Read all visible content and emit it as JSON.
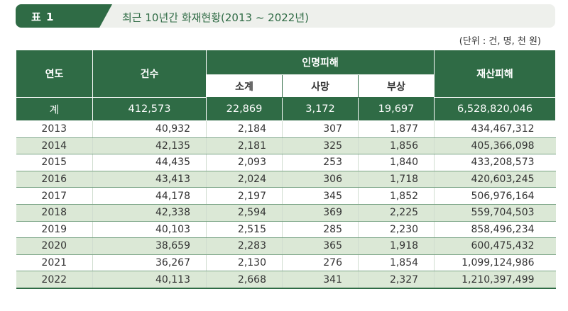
{
  "title": {
    "tag": "표 1",
    "text": "최근 10년간 화재현황(2013 ~ 2022년)"
  },
  "unit": "(단위 : 건, 명, 천 원)",
  "headers": {
    "year": "연도",
    "count": "건수",
    "casualties": "인명피해",
    "subtotal": "소계",
    "deaths": "사망",
    "injuries": "부상",
    "property": "재산피해"
  },
  "total": {
    "label": "계",
    "count": "412,573",
    "subtotal": "22,869",
    "deaths": "3,172",
    "injuries": "19,697",
    "property": "6,528,820,046"
  },
  "rows": [
    {
      "year": "2013",
      "count": "40,932",
      "subtotal": "2,184",
      "deaths": "307",
      "injuries": "1,877",
      "property": "434,467,312"
    },
    {
      "year": "2014",
      "count": "42,135",
      "subtotal": "2,181",
      "deaths": "325",
      "injuries": "1,856",
      "property": "405,366,098"
    },
    {
      "year": "2015",
      "count": "44,435",
      "subtotal": "2,093",
      "deaths": "253",
      "injuries": "1,840",
      "property": "433,208,573"
    },
    {
      "year": "2016",
      "count": "43,413",
      "subtotal": "2,024",
      "deaths": "306",
      "injuries": "1,718",
      "property": "420,603,245"
    },
    {
      "year": "2017",
      "count": "44,178",
      "subtotal": "2,197",
      "deaths": "345",
      "injuries": "1,852",
      "property": "506,976,164"
    },
    {
      "year": "2018",
      "count": "42,338",
      "subtotal": "2,594",
      "deaths": "369",
      "injuries": "2,225",
      "property": "559,704,503"
    },
    {
      "year": "2019",
      "count": "40,103",
      "subtotal": "2,515",
      "deaths": "285",
      "injuries": "2,230",
      "property": "858,496,234"
    },
    {
      "year": "2020",
      "count": "38,659",
      "subtotal": "2,283",
      "deaths": "365",
      "injuries": "1,918",
      "property": "600,475,432"
    },
    {
      "year": "2021",
      "count": "36,267",
      "subtotal": "2,130",
      "deaths": "276",
      "injuries": "1,854",
      "property": "1,099,124,986"
    },
    {
      "year": "2022",
      "count": "40,113",
      "subtotal": "2,668",
      "deaths": "341",
      "injuries": "2,327",
      "property": "1,210,397,499"
    }
  ]
}
